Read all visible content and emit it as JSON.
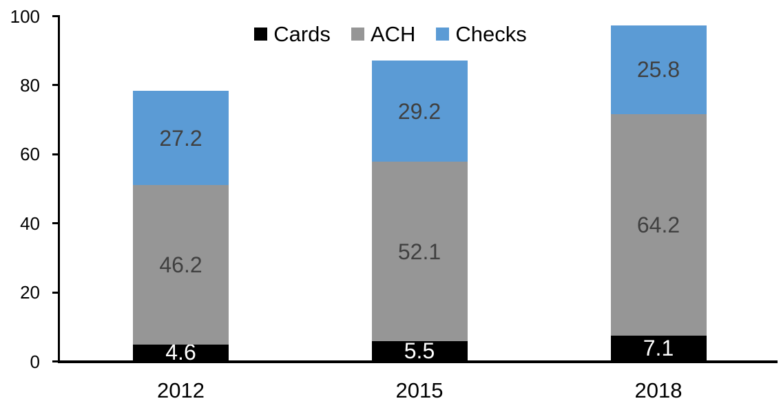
{
  "chart_data": {
    "type": "bar",
    "stacked": true,
    "title": "",
    "xlabel": "",
    "ylabel": "",
    "categories": [
      "2012",
      "2015",
      "2018"
    ],
    "series": [
      {
        "name": "Cards",
        "values": [
          4.6,
          5.5,
          7.1
        ],
        "color": "#000000",
        "label_color": "#ffffff"
      },
      {
        "name": "ACH",
        "values": [
          46.2,
          52.1,
          64.2
        ],
        "color": "#969696",
        "label_color": "#404040"
      },
      {
        "name": "Checks",
        "values": [
          27.2,
          29.2,
          25.8
        ],
        "color": "#5B9BD5",
        "label_color": "#404040"
      }
    ],
    "stack_totals": [
      78.0,
      86.8,
      97.1
    ],
    "ylim": [
      0,
      100
    ],
    "yticks": [
      "0",
      "20",
      "40",
      "60",
      "80",
      "100"
    ],
    "grid": false,
    "data_labels": true,
    "legend_position": "top-center",
    "legend": [
      {
        "label": "Cards",
        "color": "#000000"
      },
      {
        "label": "ACH",
        "color": "#969696"
      },
      {
        "label": "Checks",
        "color": "#5B9BD5"
      }
    ],
    "colors": {
      "axis": "#000000",
      "background": "#ffffff"
    }
  }
}
